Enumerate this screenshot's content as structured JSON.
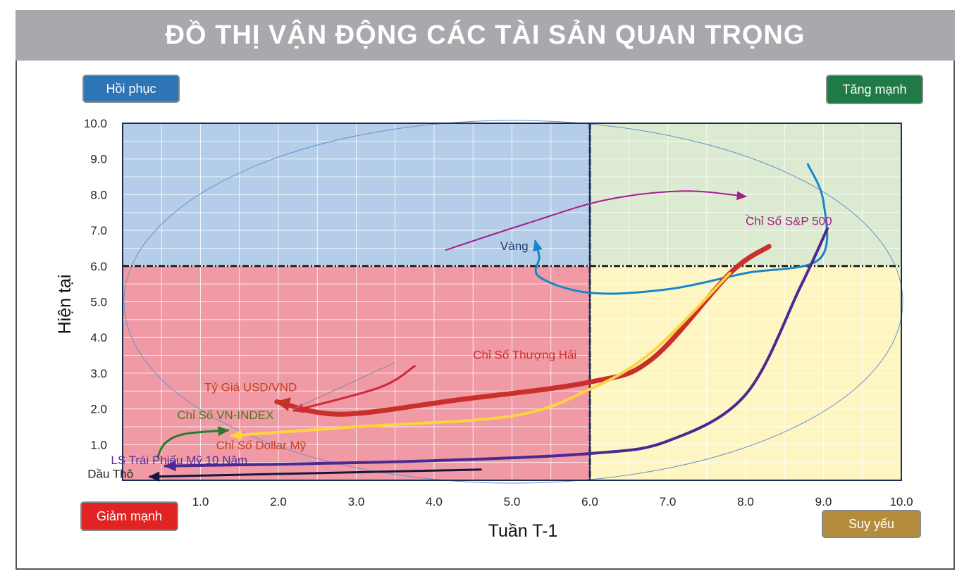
{
  "header": {
    "title": "ĐỒ THỊ VẬN ĐỘNG CÁC TÀI SẢN QUAN TRỌNG"
  },
  "quadrants": {
    "recovery": {
      "label": "Hồi phục",
      "bg": "#2e75b6",
      "fg": "#ffffff",
      "fill": "#b4cde9"
    },
    "strong": {
      "label": "Tăng mạnh",
      "bg": "#1f7a45",
      "fg": "#ffffff",
      "fill": "#dbead0"
    },
    "falling": {
      "label": "Giảm mạnh",
      "bg": "#e02424",
      "fg": "#ffffff",
      "fill": "#ef9aa5"
    },
    "weak": {
      "label": "Suy yếu",
      "bg": "#b58c3c",
      "fg": "#ffffff",
      "fill": "#fdf6c3"
    }
  },
  "chart_data": {
    "type": "line",
    "xlabel": "Tuần T-1",
    "ylabel": "Hiện tại",
    "xlim": [
      0,
      10
    ],
    "ylim": [
      0,
      10
    ],
    "x_ticks": [
      "1.0",
      "2.0",
      "3.0",
      "4.0",
      "5.0",
      "6.0",
      "7.0",
      "8.0",
      "9.0",
      "10.0"
    ],
    "y_ticks": [
      "1.0",
      "2.0",
      "3.0",
      "4.0",
      "5.0",
      "6.0",
      "7.0",
      "8.0",
      "9.0",
      "10.0"
    ],
    "divider": {
      "x": 6.0,
      "y": 6.0
    },
    "grid": true,
    "series": [
      {
        "name": "Chỉ Số S&P 500",
        "color": "#a51e8e",
        "width": 2,
        "points": [
          [
            4.15,
            6.45
          ],
          [
            5.2,
            7.2
          ],
          [
            6.2,
            7.85
          ],
          [
            7.2,
            8.1
          ],
          [
            8.0,
            7.95
          ]
        ]
      },
      {
        "name": "Vàng",
        "color": "#1a86c7",
        "width": 3,
        "points": [
          [
            8.8,
            8.85
          ],
          [
            9.0,
            7.8
          ],
          [
            8.95,
            6.2
          ],
          [
            8.0,
            5.8
          ],
          [
            7.0,
            5.35
          ],
          [
            6.0,
            5.25
          ],
          [
            5.35,
            5.7
          ],
          [
            5.35,
            6.25
          ],
          [
            5.3,
            6.7
          ]
        ]
      },
      {
        "name": "Chỉ Số Thượng Hải",
        "color": "#c9302c",
        "width": 7,
        "points": [
          [
            8.3,
            6.55
          ],
          [
            7.8,
            5.8
          ],
          [
            6.8,
            3.4
          ],
          [
            6.0,
            2.75
          ],
          [
            4.3,
            2.25
          ],
          [
            2.8,
            1.85
          ],
          [
            1.98,
            2.2
          ]
        ]
      },
      {
        "name": "Tỷ Giá USD/VND",
        "color": "#d12a3a",
        "width": 3,
        "points": [
          [
            3.75,
            3.2
          ],
          [
            3.3,
            2.6
          ],
          [
            2.2,
            1.95
          ]
        ]
      },
      {
        "name": "Chỉ Số Dollar Mỹ",
        "color": "#ffd23f",
        "width": 4,
        "points": [
          [
            7.8,
            5.8
          ],
          [
            6.8,
            3.6
          ],
          [
            6.0,
            2.55
          ],
          [
            5.0,
            1.8
          ],
          [
            3.0,
            1.5
          ],
          [
            1.4,
            1.25
          ]
        ]
      },
      {
        "name": "Chỉ Số VN-INDEX",
        "color": "#2d7a2d",
        "width": 3,
        "points": [
          [
            0.45,
            0.65
          ],
          [
            0.55,
            1.05
          ],
          [
            0.8,
            1.3
          ],
          [
            1.35,
            1.4
          ]
        ]
      },
      {
        "name": "LS Trái Phiếu Mỹ 10 Năm",
        "color": "#4b2990",
        "width": 4,
        "points": [
          [
            9.05,
            7.05
          ],
          [
            8.7,
            5.4
          ],
          [
            8.0,
            2.4
          ],
          [
            7.0,
            1.1
          ],
          [
            6.0,
            0.75
          ],
          [
            4.0,
            0.55
          ],
          [
            2.0,
            0.45
          ],
          [
            0.55,
            0.4
          ]
        ]
      },
      {
        "name": "Dầu Thô",
        "color": "#141640",
        "width": 3,
        "points": [
          [
            4.6,
            0.3
          ],
          [
            0.35,
            0.1
          ]
        ]
      }
    ],
    "labels": [
      {
        "text": "Chỉ Số S&P 500",
        "color": "#a51e8e",
        "x": 8.0,
        "y": 7.15
      },
      {
        "text": "Vàng",
        "color": "#1b3b6b",
        "x": 4.85,
        "y": 6.45
      },
      {
        "text": "Chỉ Số Thượng Hải",
        "color": "#c9302c",
        "x": 4.5,
        "y": 3.4
      },
      {
        "text": "Tỷ Giá USD/VND",
        "color": "#c4431f",
        "x": 1.05,
        "y": 2.5
      },
      {
        "text": "Chỉ Số VN-INDEX",
        "color": "#4d7a1a",
        "x": 0.7,
        "y": 1.72
      },
      {
        "text": "Chỉ Số Dollar Mỹ",
        "color": "#c4431f",
        "x": 1.2,
        "y": 0.87
      },
      {
        "text": "LS Trái Phiếu Mỹ 10 Năm",
        "color": "#5b2a9a",
        "x": -0.15,
        "y": 0.45
      },
      {
        "text": "Dầu Thô",
        "color": "#222222",
        "x": -0.45,
        "y": 0.07
      }
    ]
  }
}
